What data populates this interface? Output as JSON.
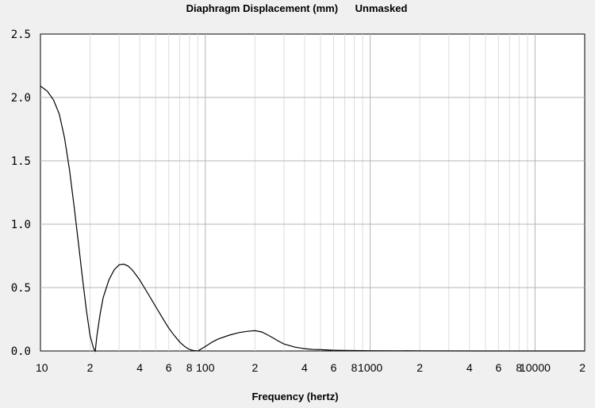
{
  "chart_data": {
    "type": "line",
    "title": "Diaphragm Displacement (mm)",
    "title_suffix": "Unmasked",
    "xlabel": "Frequency (hertz)",
    "ylabel": "",
    "x_scale": "log",
    "xlim": [
      10,
      20000
    ],
    "ylim": [
      0,
      2.5
    ],
    "yticks": [
      "0.0",
      "0.5",
      "1.0",
      "1.5",
      "2.0",
      "2.5"
    ],
    "xticks": [
      {
        "value": 10,
        "label": "10"
      },
      {
        "value": 20,
        "label": "2"
      },
      {
        "value": 40,
        "label": "4"
      },
      {
        "value": 60,
        "label": "6"
      },
      {
        "value": 80,
        "label": "8"
      },
      {
        "value": 100,
        "label": "100"
      },
      {
        "value": 200,
        "label": "2"
      },
      {
        "value": 400,
        "label": "4"
      },
      {
        "value": 600,
        "label": "6"
      },
      {
        "value": 800,
        "label": "8"
      },
      {
        "value": 1000,
        "label": "1000"
      },
      {
        "value": 2000,
        "label": "2"
      },
      {
        "value": 4000,
        "label": "4"
      },
      {
        "value": 6000,
        "label": "6"
      },
      {
        "value": 8000,
        "label": "8"
      },
      {
        "value": 10000,
        "label": "10000"
      },
      {
        "value": 20000,
        "label": "2"
      }
    ],
    "grid": true,
    "colors": {
      "background": "#f0f0f0",
      "plot": "#ffffff",
      "line": "#000000",
      "grid_major": "#b4b4b4",
      "grid_minor": "#dddddd"
    },
    "series": [
      {
        "x": [
          10,
          11,
          12,
          13,
          14,
          15,
          16,
          17,
          18,
          19,
          20,
          21,
          21.5,
          22,
          23,
          24,
          26,
          28,
          30,
          32,
          34,
          36,
          38,
          40,
          45,
          50,
          55,
          60,
          65,
          70,
          75,
          80,
          85,
          90,
          100,
          110,
          120,
          140,
          160,
          180,
          200,
          220,
          240,
          260,
          280,
          300,
          350,
          400,
          450,
          500,
          550,
          600,
          700,
          800,
          1000,
          2000,
          5000,
          10000,
          20000
        ],
        "y": [
          2.09,
          2.05,
          1.98,
          1.87,
          1.68,
          1.43,
          1.14,
          0.85,
          0.57,
          0.32,
          0.12,
          0.02,
          0.0,
          0.12,
          0.29,
          0.42,
          0.56,
          0.64,
          0.68,
          0.685,
          0.67,
          0.64,
          0.6,
          0.56,
          0.45,
          0.35,
          0.26,
          0.18,
          0.12,
          0.07,
          0.035,
          0.012,
          0.003,
          0.0,
          0.035,
          0.07,
          0.095,
          0.125,
          0.145,
          0.155,
          0.16,
          0.15,
          0.125,
          0.1,
          0.075,
          0.055,
          0.03,
          0.018,
          0.012,
          0.01,
          0.008,
          0.006,
          0.004,
          0.003,
          0.002,
          0.001,
          0.0,
          0.0,
          0.0
        ]
      }
    ]
  }
}
